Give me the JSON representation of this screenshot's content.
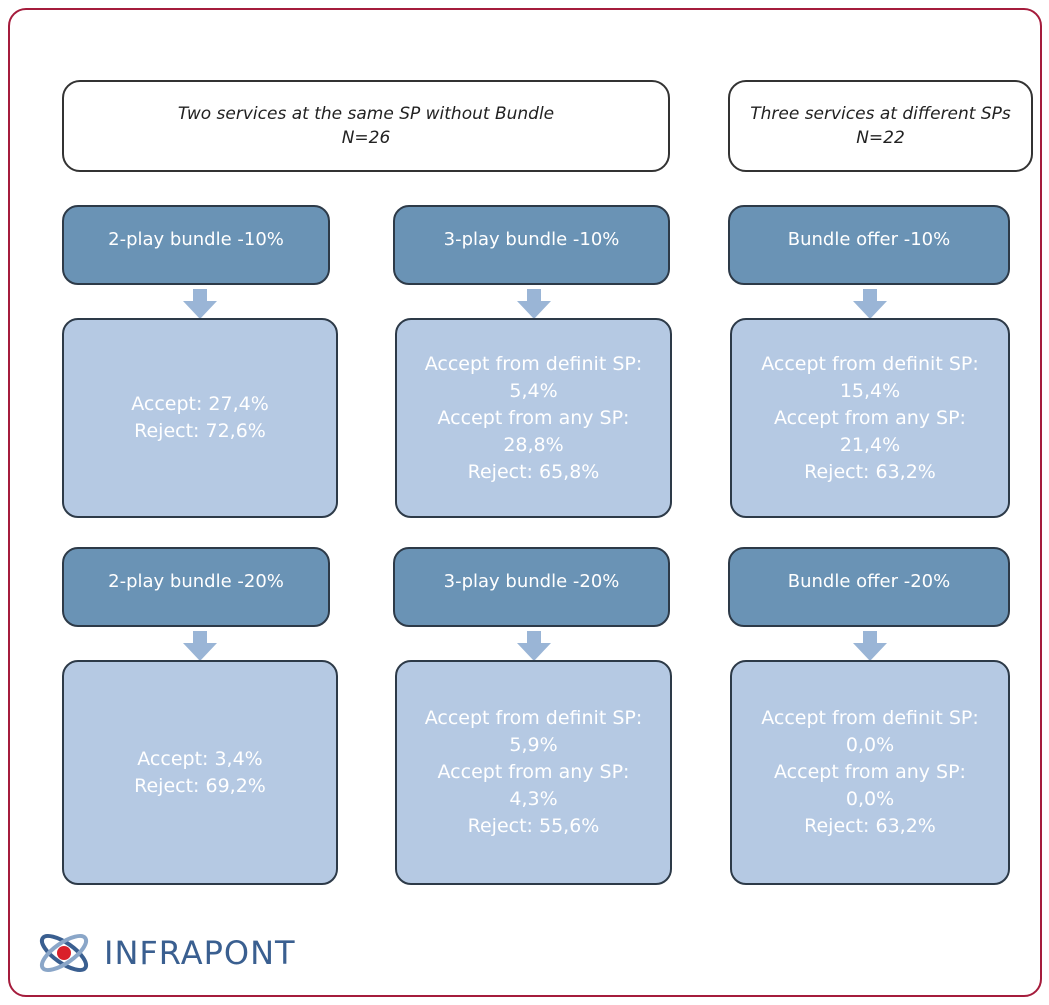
{
  "headers": [
    {
      "title": "Two services at the same SP without Bundle",
      "n": "N=26"
    },
    {
      "title": "Three services at different SPs",
      "n": "N=22"
    }
  ],
  "rows": [
    [
      {
        "offer": "2-play bundle -10%",
        "lines": [
          "Accept: 27,4%",
          "Reject: 72,6%"
        ]
      },
      {
        "offer": "3-play bundle -10%",
        "lines": [
          "Accept from definit SP:",
          "5,4%",
          "Accept from any SP:",
          "28,8%",
          "Reject: 65,8%"
        ]
      },
      {
        "offer": "Bundle offer -10%",
        "lines": [
          "Accept from definit SP:",
          "15,4%",
          "Accept from any SP:",
          "21,4%",
          "Reject: 63,2%"
        ]
      }
    ],
    [
      {
        "offer": "2-play bundle -20%",
        "lines": [
          "Accept: 3,4%",
          "Reject: 69,2%"
        ]
      },
      {
        "offer": "3-play bundle -20%",
        "lines": [
          "Accept from definit SP:",
          "5,9%",
          "Accept from any SP:",
          "4,3%",
          "Reject: 55,6%"
        ]
      },
      {
        "offer": "Bundle offer -20%",
        "lines": [
          "Accept from definit SP:",
          "0,0%",
          "Accept from any SP:",
          "0,0%",
          "Reject: 63,2%"
        ]
      }
    ]
  ],
  "logo": "INFRAPONT"
}
